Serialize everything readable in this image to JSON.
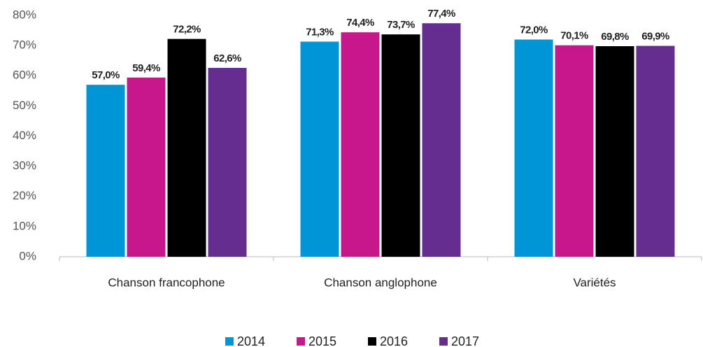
{
  "chart_data": {
    "type": "bar",
    "categories": [
      "Chanson francophone",
      "Chanson anglophone",
      "Variétés"
    ],
    "series": [
      {
        "name": "2014",
        "color": "#0095d6",
        "values": [
          57.0,
          71.3,
          72.0
        ],
        "value_labels": [
          "57,0%",
          "71,3%",
          "72,0%"
        ]
      },
      {
        "name": "2015",
        "color": "#c8168c",
        "values": [
          59.4,
          74.4,
          70.1
        ],
        "value_labels": [
          "59,4%",
          "74,4%",
          "70,1%"
        ]
      },
      {
        "name": "2016",
        "color": "#000000",
        "values": [
          72.2,
          73.7,
          69.8
        ],
        "value_labels": [
          "72,2%",
          "73,7%",
          "69,8%"
        ]
      },
      {
        "name": "2017",
        "color": "#662d91",
        "values": [
          62.6,
          77.4,
          69.9
        ],
        "value_labels": [
          "62,6%",
          "77,4%",
          "69,9%"
        ]
      }
    ],
    "ylim": [
      0,
      80
    ],
    "yticks": [
      {
        "value": 0,
        "label": "0%"
      },
      {
        "value": 10,
        "label": "10%"
      },
      {
        "value": 20,
        "label": "20%"
      },
      {
        "value": 30,
        "label": "30%"
      },
      {
        "value": 40,
        "label": "40%"
      },
      {
        "value": 50,
        "label": "50%"
      },
      {
        "value": 60,
        "label": "60%"
      },
      {
        "value": 70,
        "label": "70%"
      },
      {
        "value": 80,
        "label": "80%"
      }
    ],
    "grid": false,
    "legend": "bottom"
  }
}
